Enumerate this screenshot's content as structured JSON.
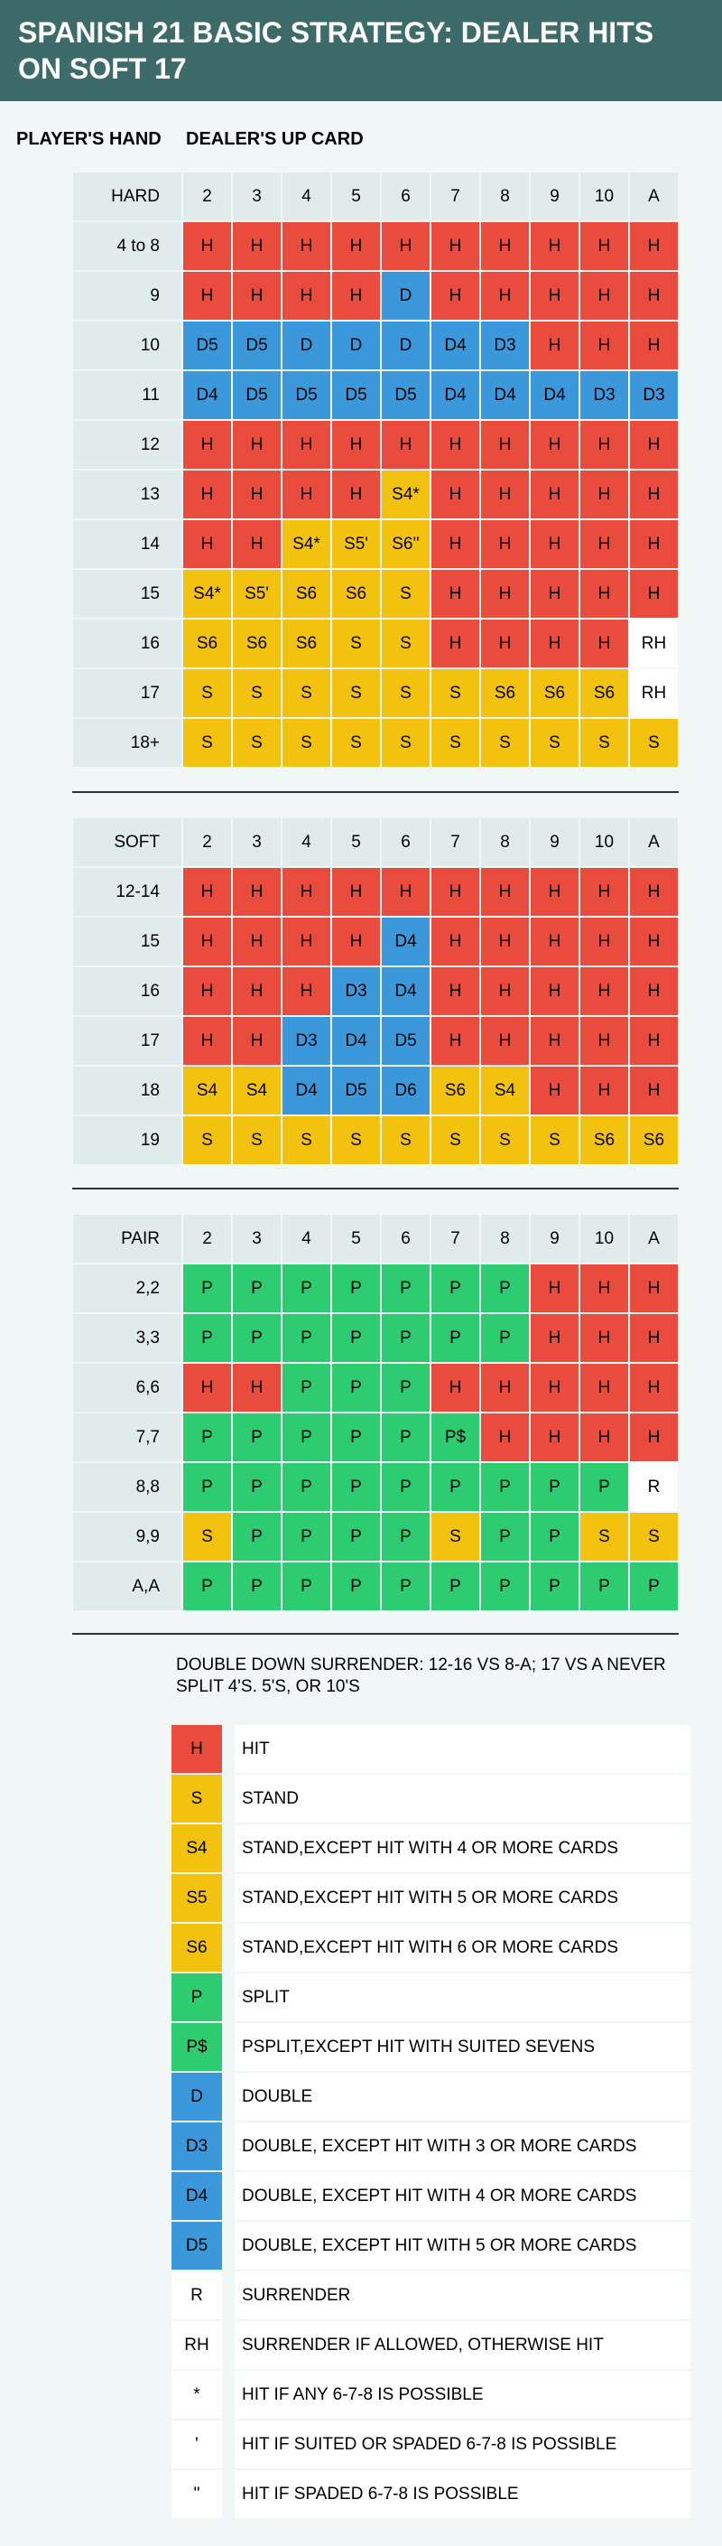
{
  "title": "SPANISH 21 BASIC STRATEGY: DEALER HITS ON SOFT 17",
  "player_hand_label": "PLAYER'S HAND",
  "dealer_up_label": "DEALER'S UP CARD",
  "colors": {
    "H": "#e94b3c",
    "S": "#f2c20f",
    "D": "#3a98db",
    "P": "#2ecc71",
    "R": "#ffffff",
    "header": "#3d6b6a",
    "label_bg": "#e0ecec"
  },
  "hard": {
    "header": [
      "HARD",
      "2",
      "3",
      "4",
      "5",
      "6",
      "7",
      "8",
      "9",
      "10",
      "A"
    ],
    "rows": [
      {
        "label": "4 to 8",
        "cells": [
          "H",
          "H",
          "H",
          "H",
          "H",
          "H",
          "H",
          "H",
          "H",
          "H"
        ]
      },
      {
        "label": "9",
        "cells": [
          "H",
          "H",
          "H",
          "H",
          "D",
          "H",
          "H",
          "H",
          "H",
          "H"
        ]
      },
      {
        "label": "10",
        "cells": [
          "D5",
          "D5",
          "D",
          "D",
          "D",
          "D4",
          "D3",
          "H",
          "H",
          "H"
        ]
      },
      {
        "label": "11",
        "cells": [
          "D4",
          "D5",
          "D5",
          "D5",
          "D5",
          "D4",
          "D4",
          "D4",
          "D3",
          "D3"
        ]
      },
      {
        "label": "12",
        "cells": [
          "H",
          "H",
          "H",
          "H",
          "H",
          "H",
          "H",
          "H",
          "H",
          "H"
        ]
      },
      {
        "label": "13",
        "cells": [
          "H",
          "H",
          "H",
          "H",
          "S4*",
          "H",
          "H",
          "H",
          "H",
          "H"
        ]
      },
      {
        "label": "14",
        "cells": [
          "H",
          "H",
          "S4*",
          "S5'",
          "S6''",
          "H",
          "H",
          "H",
          "H",
          "H"
        ]
      },
      {
        "label": "15",
        "cells": [
          "S4*",
          "S5'",
          "S6",
          "S6",
          "S",
          "H",
          "H",
          "H",
          "H",
          "H"
        ]
      },
      {
        "label": "16",
        "cells": [
          "S6",
          "S6",
          "S6",
          "S",
          "S",
          "H",
          "H",
          "H",
          "H",
          "RH"
        ]
      },
      {
        "label": "17",
        "cells": [
          "S",
          "S",
          "S",
          "S",
          "S",
          "S",
          "S6",
          "S6",
          "S6",
          "RH"
        ]
      },
      {
        "label": "18+",
        "cells": [
          "S",
          "S",
          "S",
          "S",
          "S",
          "S",
          "S",
          "S",
          "S",
          "S"
        ]
      }
    ]
  },
  "soft": {
    "header": [
      "SOFT",
      "2",
      "3",
      "4",
      "5",
      "6",
      "7",
      "8",
      "9",
      "10",
      "A"
    ],
    "rows": [
      {
        "label": "12-14",
        "cells": [
          "H",
          "H",
          "H",
          "H",
          "H",
          "H",
          "H",
          "H",
          "H",
          "H"
        ]
      },
      {
        "label": "15",
        "cells": [
          "H",
          "H",
          "H",
          "H",
          "D4",
          "H",
          "H",
          "H",
          "H",
          "H"
        ]
      },
      {
        "label": "16",
        "cells": [
          "H",
          "H",
          "H",
          "D3",
          "D4",
          "H",
          "H",
          "H",
          "H",
          "H"
        ]
      },
      {
        "label": "17",
        "cells": [
          "H",
          "H",
          "D3",
          "D4",
          "D5",
          "H",
          "H",
          "H",
          "H",
          "H"
        ]
      },
      {
        "label": "18",
        "cells": [
          "S4",
          "S4",
          "D4",
          "D5",
          "D6",
          "S6",
          "S4",
          "H",
          "H",
          "H"
        ]
      },
      {
        "label": "19",
        "cells": [
          "S",
          "S",
          "S",
          "S",
          "S",
          "S",
          "S",
          "S",
          "S6",
          "S6"
        ]
      }
    ]
  },
  "pair": {
    "header": [
      "PAIR",
      "2",
      "3",
      "4",
      "5",
      "6",
      "7",
      "8",
      "9",
      "10",
      "A"
    ],
    "rows": [
      {
        "label": "2,2",
        "cells": [
          "P",
          "P",
          "P",
          "P",
          "P",
          "P",
          "P",
          "H",
          "H",
          "H"
        ]
      },
      {
        "label": "3,3",
        "cells": [
          "P",
          "P",
          "P",
          "P",
          "P",
          "P",
          "P",
          "H",
          "H",
          "H"
        ]
      },
      {
        "label": "6,6",
        "cells": [
          "H",
          "H",
          "P",
          "P",
          "P",
          "H",
          "H",
          "H",
          "H",
          "H"
        ]
      },
      {
        "label": "7,7",
        "cells": [
          "P",
          "P",
          "P",
          "P",
          "P",
          "P$",
          "H",
          "H",
          "H",
          "H"
        ]
      },
      {
        "label": "8,8",
        "cells": [
          "P",
          "P",
          "P",
          "P",
          "P",
          "P",
          "P",
          "P",
          "P",
          "R"
        ]
      },
      {
        "label": "9,9",
        "cells": [
          "S",
          "P",
          "P",
          "P",
          "P",
          "S",
          "P",
          "P",
          "S",
          "S"
        ]
      },
      {
        "label": "A,A",
        "cells": [
          "P",
          "P",
          "P",
          "P",
          "P",
          "P",
          "P",
          "P",
          "P",
          "P"
        ]
      }
    ]
  },
  "note": "DOUBLE DOWN SURRENDER: 12-16 VS 8-A; 17 VS A NEVER SPLIT 4'S. 5'S, OR 10'S",
  "legend": [
    {
      "code": "H",
      "desc": "HIT"
    },
    {
      "code": "S",
      "desc": "STAND"
    },
    {
      "code": "S4",
      "desc": "STAND,EXCEPT HIT WITH 4 OR MORE CARDS"
    },
    {
      "code": "S5",
      "desc": "STAND,EXCEPT HIT WITH 5 OR MORE CARDS"
    },
    {
      "code": "S6",
      "desc": "STAND,EXCEPT HIT WITH 6 OR MORE CARDS"
    },
    {
      "code": "P",
      "desc": "SPLIT"
    },
    {
      "code": "P$",
      "desc": "PSPLIT,EXCEPT HIT WITH SUITED SEVENS"
    },
    {
      "code": "D",
      "desc": "DOUBLE"
    },
    {
      "code": "D3",
      "desc": "DOUBLE, EXCEPT HIT WITH 3 OR MORE CARDS"
    },
    {
      "code": "D4",
      "desc": "DOUBLE, EXCEPT HIT WITH 4 OR MORE CARDS"
    },
    {
      "code": "D5",
      "desc": "DOUBLE, EXCEPT HIT WITH 5 OR MORE CARDS"
    },
    {
      "code": "R",
      "desc": "SURRENDER"
    },
    {
      "code": "RH",
      "desc": "SURRENDER IF ALLOWED, OTHERWISE HIT"
    },
    {
      "code": "*",
      "desc": "HIT IF ANY 6-7-8 IS POSSIBLE"
    },
    {
      "code": "'",
      "desc": "HIT IF SUITED OR SPADED 6-7-8 IS POSSIBLE"
    },
    {
      "code": "''",
      "desc": "HIT IF SPADED 6-7-8 IS POSSIBLE"
    }
  ]
}
